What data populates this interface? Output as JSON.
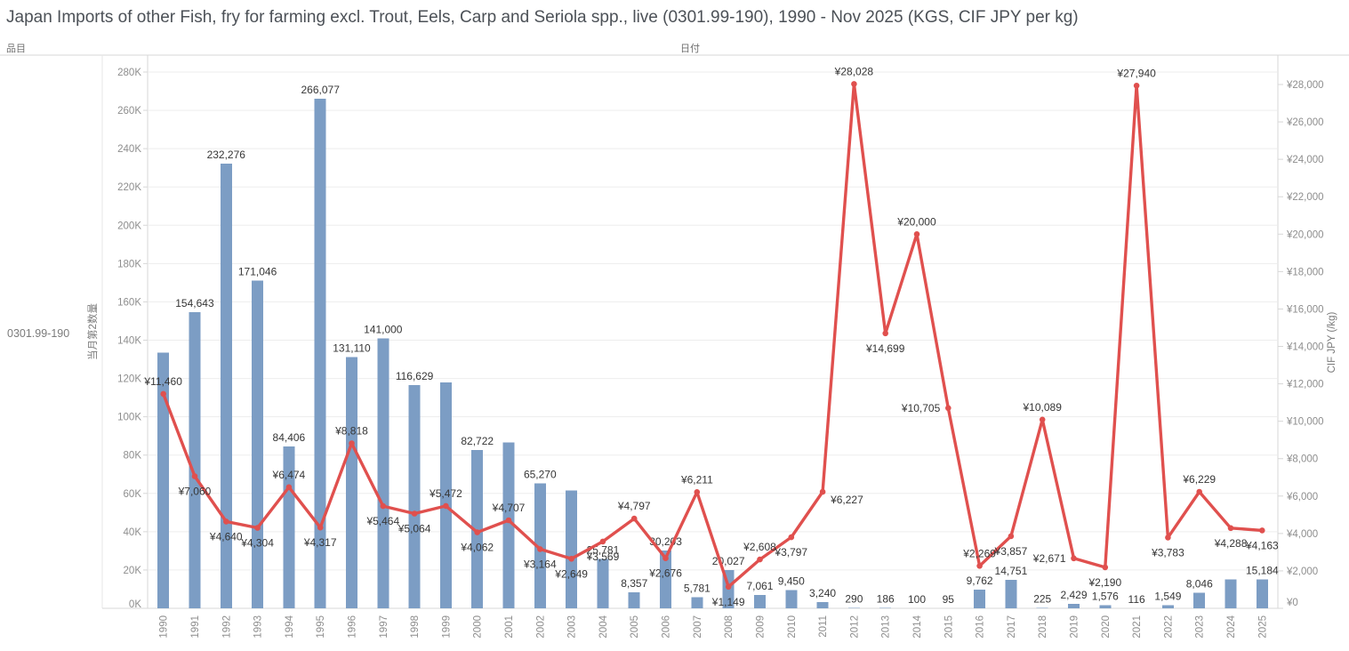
{
  "title": "Japan Imports of other Fish, fry for farming excl. Trout, Eels, Carp and Seriola spp., live (0301.99-190), 1990 - Nov 2025 (KGS, CIF JPY per kg)",
  "header": {
    "item_column": "品目",
    "date_column": "日付"
  },
  "row_label": "0301.99-190",
  "chart_data": {
    "type": "bar",
    "subtype": "dual-axis bar + line",
    "categories": [
      "1990",
      "1991",
      "1992",
      "1993",
      "1994",
      "1995",
      "1996",
      "1997",
      "1998",
      "1999",
      "2000",
      "2001",
      "2002",
      "2003",
      "2004",
      "2005",
      "2006",
      "2007",
      "2008",
      "2009",
      "2010",
      "2011",
      "2012",
      "2013",
      "2014",
      "2015",
      "2016",
      "2017",
      "2018",
      "2019",
      "2020",
      "2021",
      "2022",
      "2023",
      "2024",
      "2025"
    ],
    "bar_series": {
      "name": "当月第2数量",
      "unit": "KGS",
      "axis": "left",
      "color": "#7c9dc4",
      "values": [
        133400,
        154643,
        232276,
        171046,
        84406,
        266077,
        131110,
        141000,
        116629,
        118000,
        82722,
        86500,
        65270,
        61500,
        25781,
        8357,
        30203,
        5781,
        20027,
        7061,
        9450,
        3240,
        290,
        186,
        100,
        95,
        9762,
        14751,
        225,
        2429,
        1576,
        116,
        1549,
        8046,
        15000,
        15184
      ],
      "data_labels": [
        "",
        "154,643",
        "232,276",
        "171,046",
        "84,406",
        "266,077",
        "131,110",
        "141,000",
        "116,629",
        "",
        "82,722",
        "",
        "65,270",
        "",
        "25,781",
        "8,357",
        "30,203",
        "5,781",
        "20,027",
        "7,061",
        "9,450",
        "3,240",
        "290",
        "186",
        "100",
        "95",
        "9,762",
        "14,751",
        "225",
        "2,429",
        "1,576",
        "116",
        "1,549",
        "8,046",
        "",
        "15,184"
      ]
    },
    "line_series": {
      "name": "CIF JPY (/kg)",
      "axis": "right",
      "color": "#e0504e",
      "values": [
        11460,
        7060,
        4640,
        4304,
        6474,
        4317,
        8818,
        5464,
        5064,
        5472,
        4062,
        4707,
        3164,
        2649,
        3569,
        4797,
        2676,
        6211,
        1149,
        2608,
        3797,
        6227,
        28028,
        14699,
        20000,
        10705,
        2269,
        3857,
        10089,
        2671,
        2190,
        27940,
        3783,
        6229,
        4288,
        4163
      ],
      "data_labels": [
        "¥11,460",
        "¥7,060",
        "¥4,640",
        "¥4,304",
        "¥6,474",
        "¥4,317",
        "¥8,818",
        "¥5,464",
        "¥5,064",
        "¥5,472",
        "¥4,062",
        "¥4,707",
        "¥3,164",
        "¥2,649",
        "¥3,569",
        "¥4,797",
        "¥2,676",
        "¥6,211",
        "¥1,149",
        "¥2,608",
        "¥3,797",
        "¥6,227",
        "¥28,028",
        "¥14,699",
        "¥20,000",
        "¥10,705",
        "¥2,269",
        "¥3,857",
        "¥10,089",
        "¥2,671",
        "¥2,190",
        "¥27,940",
        "¥3,783",
        "¥6,229",
        "¥4,288",
        "¥4,163"
      ]
    },
    "left_axis": {
      "title": "当月第2数量",
      "ticks": [
        "0K",
        "20K",
        "40K",
        "60K",
        "80K",
        "100K",
        "120K",
        "140K",
        "160K",
        "180K",
        "200K",
        "220K",
        "240K",
        "260K",
        "280K"
      ],
      "tick_step": 20000,
      "range": [
        0,
        288000
      ],
      "grid": true
    },
    "right_axis": {
      "title": "CIF JPY (/kg)",
      "ticks": [
        "¥0",
        "¥2,000",
        "¥4,000",
        "¥6,000",
        "¥8,000",
        "¥10,000",
        "¥12,000",
        "¥14,000",
        "¥16,000",
        "¥18,000",
        "¥20,000",
        "¥22,000",
        "¥24,000",
        "¥26,000",
        "¥28,000"
      ],
      "tick_step": 2000,
      "range": [
        0,
        29300
      ]
    },
    "x_axis": {
      "field": "日付",
      "label_rotation": -90
    },
    "legend": "none",
    "colors": {
      "bar": "#7c9dc4",
      "line": "#e0504e",
      "grid": "#ededed",
      "border": "#d7d7d7",
      "tick_text": "#8e8e8e",
      "label_text": "#363636"
    }
  }
}
